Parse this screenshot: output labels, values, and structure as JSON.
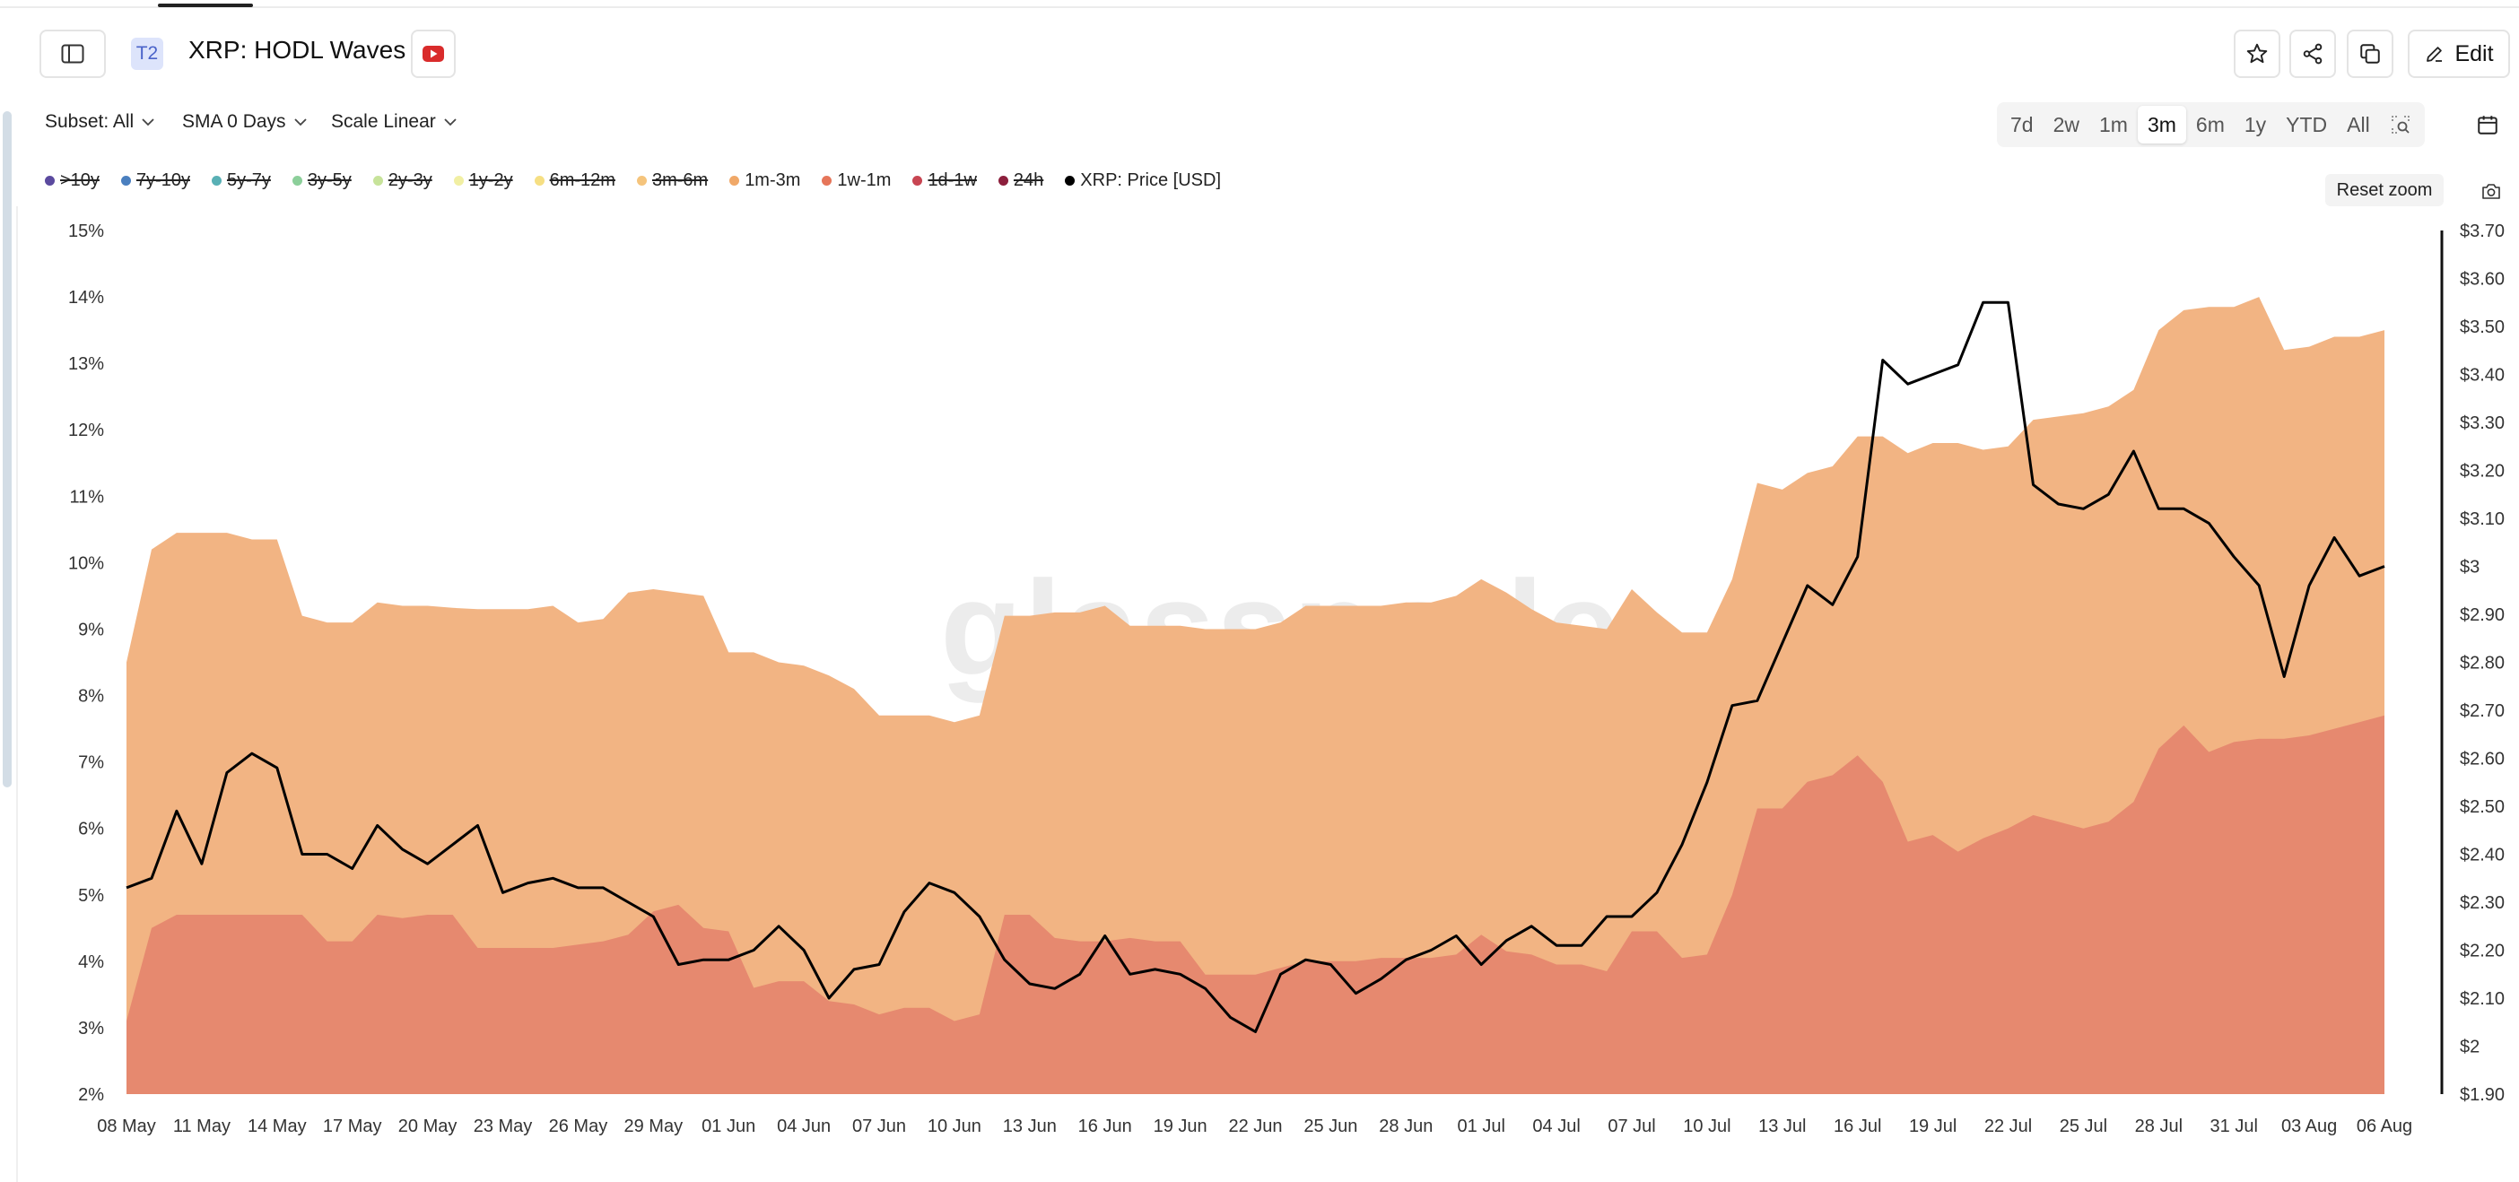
{
  "header": {
    "tier": "T2",
    "title": "XRP: HODL Waves",
    "edit_label": "Edit"
  },
  "controls": {
    "subset": "Subset: All",
    "sma": "SMA 0 Days",
    "scale": "Scale Linear",
    "ranges": [
      "7d",
      "2w",
      "1m",
      "3m",
      "6m",
      "1y",
      "YTD",
      "All"
    ],
    "active_range": "3m",
    "reset_zoom": "Reset zoom"
  },
  "legend": [
    {
      "label": ">10y",
      "color": "#5b4a9f",
      "active": false
    },
    {
      "label": "7y-10y",
      "color": "#4a7fbf",
      "active": false
    },
    {
      "label": "5y-7y",
      "color": "#59b0b5",
      "active": false
    },
    {
      "label": "3y-5y",
      "color": "#8ccf9a",
      "active": false
    },
    {
      "label": "2y-3y",
      "color": "#c7e39a",
      "active": false
    },
    {
      "label": "1y-2y",
      "color": "#f1efa3",
      "active": false
    },
    {
      "label": "6m-12m",
      "color": "#f6df83",
      "active": false
    },
    {
      "label": "3m-6m",
      "color": "#f5c47c",
      "active": false
    },
    {
      "label": "1m-3m",
      "color": "#f0a868",
      "active": true
    },
    {
      "label": "1w-1m",
      "color": "#e6765a",
      "active": true
    },
    {
      "label": "1d-1w",
      "color": "#c84552",
      "active": false
    },
    {
      "label": "24h",
      "color": "#8c1f3c",
      "active": false
    },
    {
      "label": "XRP: Price [USD]",
      "color": "#000000",
      "active": true
    }
  ],
  "watermark": "glassnode",
  "chart_data": {
    "type": "area",
    "x_tick_labels": [
      "08 May",
      "11 May",
      "14 May",
      "17 May",
      "20 May",
      "23 May",
      "26 May",
      "29 May",
      "01 Jun",
      "04 Jun",
      "07 Jun",
      "10 Jun",
      "13 Jun",
      "16 Jun",
      "19 Jun",
      "22 Jun",
      "25 Jun",
      "28 Jun",
      "01 Jul",
      "04 Jul",
      "07 Jul",
      "10 Jul",
      "13 Jul",
      "16 Jul",
      "19 Jul",
      "22 Jul",
      "25 Jul",
      "28 Jul",
      "31 Jul",
      "03 Aug",
      "06 Aug"
    ],
    "x_range": [
      "2025-05-08",
      "2025-08-07"
    ],
    "y_left": {
      "min": 2,
      "max": 15,
      "tick_labels": [
        "2%",
        "3%",
        "4%",
        "5%",
        "6%",
        "7%",
        "8%",
        "9%",
        "10%",
        "11%",
        "12%",
        "13%",
        "14%",
        "15%"
      ]
    },
    "y_right": {
      "min": 1.9,
      "max": 3.7,
      "tick_labels": [
        "$1.90",
        "$2",
        "$2.10",
        "$2.20",
        "$2.30",
        "$2.40",
        "$2.50",
        "$2.60",
        "$2.70",
        "$2.80",
        "$2.90",
        "$3",
        "$3.10",
        "$3.20",
        "$3.30",
        "$3.40",
        "$3.50",
        "$3.60",
        "$3.70"
      ]
    },
    "series": [
      {
        "name": "1w-1m",
        "axis": "left",
        "stacking": "stacked",
        "color": "#e6896f",
        "values": [
          3.1,
          4.5,
          4.7,
          4.7,
          4.7,
          4.7,
          4.7,
          4.7,
          4.3,
          4.3,
          4.7,
          4.65,
          4.7,
          4.7,
          4.2,
          4.2,
          4.2,
          4.2,
          4.25,
          4.3,
          4.4,
          4.75,
          4.85,
          4.5,
          4.45,
          3.6,
          3.7,
          3.7,
          3.4,
          3.35,
          3.2,
          3.3,
          3.3,
          3.1,
          3.2,
          4.7,
          4.7,
          4.35,
          4.3,
          4.3,
          4.35,
          4.3,
          4.3,
          3.8,
          3.8,
          3.8,
          3.9,
          4.0,
          4.0,
          4.0,
          4.05,
          4.05,
          4.05,
          4.1,
          4.4,
          4.15,
          4.1,
          3.95,
          3.95,
          3.85,
          4.45,
          4.45,
          4.05,
          4.1,
          5.0,
          6.3,
          6.3,
          6.7,
          6.8,
          7.1,
          6.7,
          5.8,
          5.9,
          5.65,
          5.85,
          6.0,
          6.2,
          6.1,
          6.0,
          6.1,
          6.4,
          7.2,
          7.55,
          7.15,
          7.3,
          7.35,
          7.35,
          7.4,
          7.5,
          7.6,
          7.7
        ],
        "note": "daily values"
      },
      {
        "name": "1m-3m",
        "axis": "left",
        "stacking": "stacked_top",
        "color": "#f2b483",
        "values": [
          8.5,
          10.2,
          10.45,
          10.45,
          10.45,
          10.35,
          10.35,
          9.2,
          9.1,
          9.1,
          9.4,
          9.35,
          9.35,
          9.32,
          9.3,
          9.3,
          9.3,
          9.35,
          9.1,
          9.15,
          9.55,
          9.6,
          9.55,
          9.5,
          8.65,
          8.65,
          8.5,
          8.45,
          8.3,
          8.1,
          7.7,
          7.7,
          7.7,
          7.6,
          7.7,
          9.2,
          9.2,
          9.25,
          9.25,
          9.35,
          9.05,
          9.05,
          9.05,
          9.0,
          9.0,
          9.0,
          9.1,
          9.35,
          9.35,
          9.35,
          9.35,
          9.4,
          9.4,
          9.5,
          9.75,
          9.55,
          9.3,
          9.1,
          9.05,
          9.0,
          9.6,
          9.25,
          8.95,
          8.95,
          9.75,
          11.2,
          11.1,
          11.35,
          11.45,
          11.9,
          11.9,
          11.65,
          11.8,
          11.8,
          11.7,
          11.75,
          12.15,
          12.2,
          12.25,
          12.35,
          12.6,
          13.5,
          13.8,
          13.85,
          13.85,
          14.0,
          13.2,
          13.25,
          13.4,
          13.4,
          13.5
        ],
        "note": "top of stacked area"
      },
      {
        "name": "XRP: Price [USD]",
        "axis": "right",
        "type": "line",
        "color": "#000000",
        "values": [
          2.33,
          2.35,
          2.49,
          2.38,
          2.57,
          2.61,
          2.58,
          2.4,
          2.4,
          2.37,
          2.46,
          2.41,
          2.38,
          2.42,
          2.46,
          2.32,
          2.34,
          2.35,
          2.33,
          2.33,
          2.3,
          2.27,
          2.17,
          2.18,
          2.18,
          2.2,
          2.25,
          2.2,
          2.1,
          2.16,
          2.17,
          2.28,
          2.34,
          2.32,
          2.27,
          2.18,
          2.13,
          2.12,
          2.15,
          2.23,
          2.15,
          2.16,
          2.15,
          2.12,
          2.06,
          2.03,
          2.15,
          2.18,
          2.17,
          2.11,
          2.14,
          2.18,
          2.2,
          2.23,
          2.17,
          2.22,
          2.25,
          2.21,
          2.21,
          2.27,
          2.27,
          2.32,
          2.42,
          2.55,
          2.71,
          2.72,
          2.84,
          2.96,
          2.92,
          3.02,
          3.43,
          3.38,
          3.4,
          3.42,
          3.55,
          3.55,
          3.17,
          3.13,
          3.12,
          3.15,
          3.24,
          3.12,
          3.12,
          3.09,
          3.02,
          2.96,
          2.77,
          2.96,
          3.06,
          2.98,
          3.0
        ]
      }
    ],
    "title": "XRP: HODL Waves",
    "grid": false,
    "legend_position": "top-left"
  }
}
